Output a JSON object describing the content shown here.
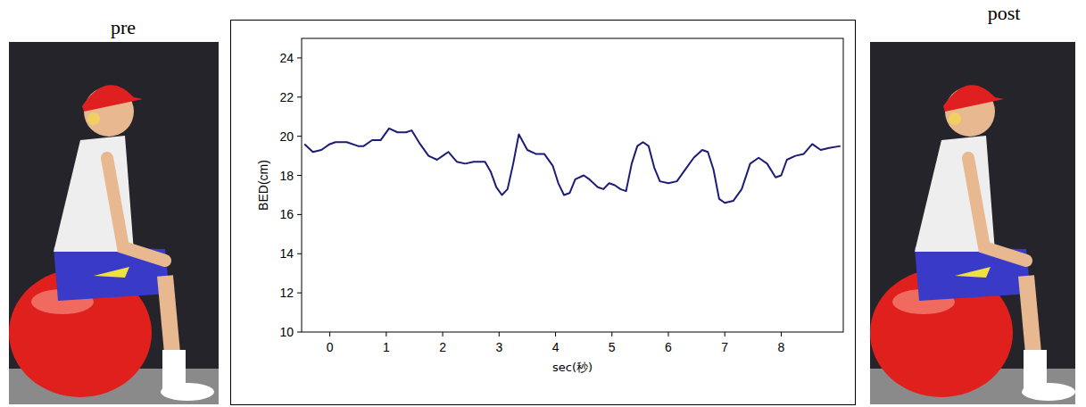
{
  "chart_data": {
    "type": "line",
    "annotations": [
      "pre",
      "post"
    ],
    "x_label": "sec(秒)",
    "y_label": "BED(cm)",
    "color": "#1c1c78",
    "xlim": [
      -0.5,
      9.1
    ],
    "xticks": [
      0,
      1,
      2,
      3,
      4,
      5,
      6,
      7,
      8
    ],
    "ylim": [
      10,
      25
    ],
    "yticks": [
      10,
      12,
      14,
      16,
      18,
      20,
      22,
      24
    ],
    "grid": false,
    "x": [
      -0.45,
      -0.3,
      -0.15,
      0.0,
      0.1,
      0.3,
      0.5,
      0.6,
      0.75,
      0.9,
      1.05,
      1.2,
      1.35,
      1.45,
      1.6,
      1.75,
      1.9,
      2.0,
      2.1,
      2.25,
      2.4,
      2.55,
      2.75,
      2.85,
      2.95,
      3.05,
      3.15,
      3.25,
      3.35,
      3.5,
      3.65,
      3.8,
      3.95,
      4.05,
      4.15,
      4.25,
      4.35,
      4.5,
      4.6,
      4.75,
      4.85,
      4.95,
      5.05,
      5.15,
      5.25,
      5.35,
      5.45,
      5.55,
      5.65,
      5.75,
      5.85,
      6.0,
      6.15,
      6.3,
      6.45,
      6.6,
      6.7,
      6.8,
      6.9,
      7.0,
      7.15,
      7.3,
      7.45,
      7.6,
      7.75,
      7.9,
      8.0,
      8.1,
      8.25,
      8.4,
      8.55,
      8.7,
      8.85,
      9.05
    ],
    "values": [
      19.6,
      19.2,
      19.3,
      19.6,
      19.7,
      19.7,
      19.5,
      19.5,
      19.8,
      19.8,
      20.4,
      20.2,
      20.2,
      20.3,
      19.6,
      19.0,
      18.8,
      19.0,
      19.2,
      18.7,
      18.6,
      18.7,
      18.7,
      18.2,
      17.4,
      17.0,
      17.3,
      18.6,
      20.1,
      19.3,
      19.1,
      19.1,
      18.5,
      17.6,
      17.0,
      17.1,
      17.8,
      18.0,
      17.8,
      17.4,
      17.3,
      17.6,
      17.5,
      17.3,
      17.2,
      18.6,
      19.5,
      19.7,
      19.5,
      18.4,
      17.7,
      17.6,
      17.7,
      18.3,
      18.9,
      19.3,
      19.2,
      18.3,
      16.8,
      16.6,
      16.7,
      17.3,
      18.6,
      18.9,
      18.6,
      17.9,
      18.0,
      18.8,
      19.0,
      19.1,
      19.6,
      19.3,
      19.4,
      19.5
    ]
  }
}
